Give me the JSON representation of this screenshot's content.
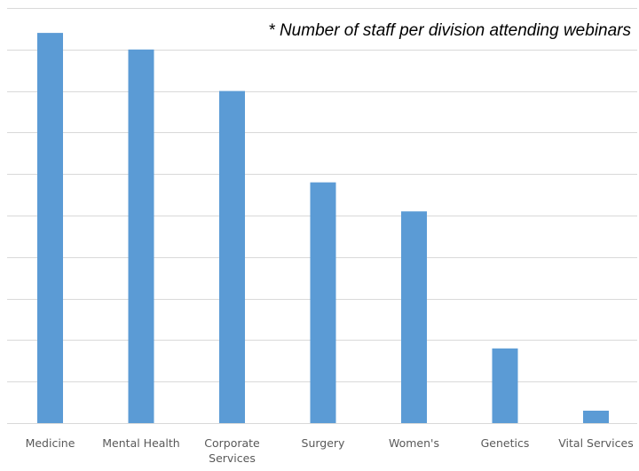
{
  "chart_data": {
    "type": "bar",
    "annotation": "* Number of staff per division attending webinars",
    "categories": [
      "Medicine",
      "Mental Health",
      "Corporate Services",
      "Surgery",
      "Women's",
      "Genetics",
      "Vital Services"
    ],
    "category_lines": [
      [
        "Medicine"
      ],
      [
        "Mental Health"
      ],
      [
        "Corporate",
        "Services"
      ],
      [
        "Surgery"
      ],
      [
        "Women's"
      ],
      [
        "Genetics"
      ],
      [
        "Vital Services"
      ]
    ],
    "values": [
      94,
      90,
      80,
      58,
      51,
      18,
      3
    ],
    "ylim": [
      0,
      100
    ],
    "ytick_interval": 10,
    "ytick_labels_shown": false,
    "grid": true,
    "legend": "none",
    "colors": {
      "bar": "#5b9bd5",
      "grid": "#d9d9d9",
      "axis": "#d9d9d9",
      "tick_text": "#595959",
      "annotation_text": "#000000"
    }
  }
}
